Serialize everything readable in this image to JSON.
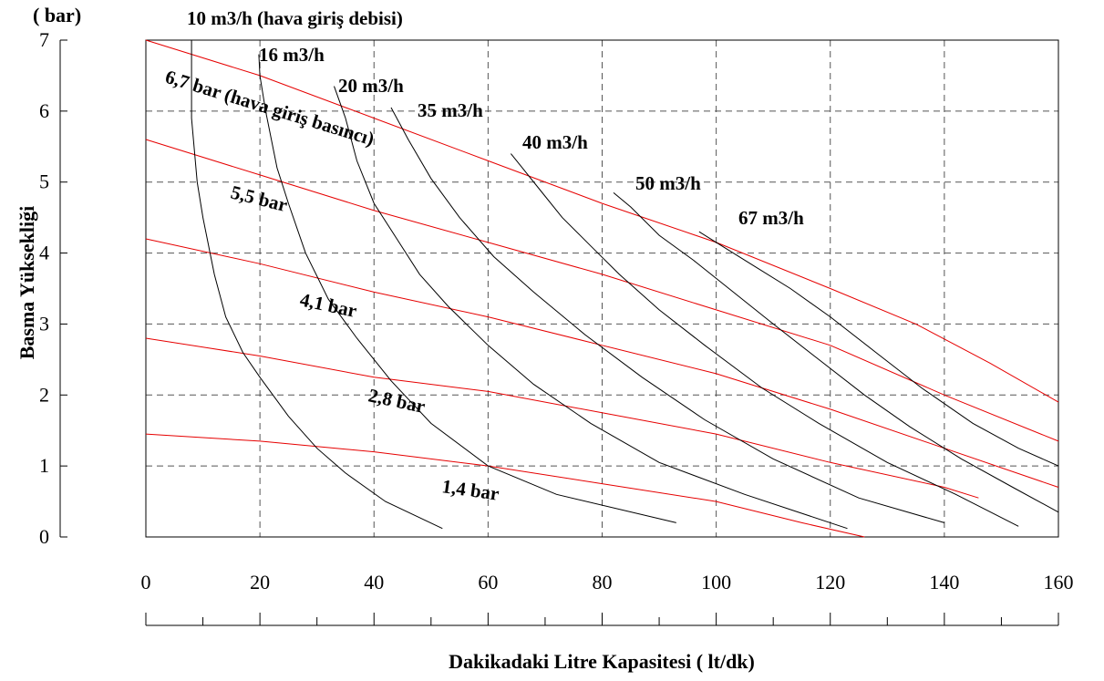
{
  "chart_data": {
    "type": "line",
    "title": "",
    "xlabel": "Dakikadaki Litre Kapasitesi ( lt/dk)",
    "ylabel": "Basma Yüksekliği",
    "y_unit": "( bar)",
    "xlim": [
      0,
      160
    ],
    "ylim": [
      0,
      7
    ],
    "x_ticks": [
      "0",
      "20",
      "40",
      "60",
      "80",
      "100",
      "120",
      "140",
      "160"
    ],
    "y_ticks": [
      "0",
      "1",
      "2",
      "3",
      "4",
      "5",
      "6",
      "7"
    ],
    "grid": true,
    "colors": {
      "air_curves": "#000000",
      "pressure_curves": "#e60000"
    },
    "air_flow_curves": [
      {
        "label": "10 m3/h (hava giriş debisi)",
        "points": [
          [
            8,
            7
          ],
          [
            8,
            5.9
          ],
          [
            9,
            5
          ],
          [
            10,
            4.5
          ],
          [
            12,
            3.7
          ],
          [
            14,
            3.1
          ],
          [
            17,
            2.6
          ],
          [
            20,
            2.25
          ],
          [
            25,
            1.7
          ],
          [
            30,
            1.25
          ],
          [
            35,
            0.9
          ],
          [
            42,
            0.5
          ],
          [
            52,
            0.12
          ]
        ]
      },
      {
        "label": "16 m3/h",
        "points": [
          [
            19.8,
            6.8
          ],
          [
            20,
            6.5
          ],
          [
            21,
            6
          ],
          [
            23,
            5.2
          ],
          [
            25,
            4.7
          ],
          [
            28,
            4
          ],
          [
            32,
            3.35
          ],
          [
            37,
            2.8
          ],
          [
            43,
            2.2
          ],
          [
            50,
            1.6
          ],
          [
            60,
            1
          ],
          [
            72,
            0.6
          ],
          [
            93,
            0.2
          ]
        ]
      },
      {
        "label": "20 m3/h",
        "points": [
          [
            33,
            6.35
          ],
          [
            35,
            5.9
          ],
          [
            37,
            5.3
          ],
          [
            40,
            4.7
          ],
          [
            44,
            4.2
          ],
          [
            48,
            3.7
          ],
          [
            53,
            3.25
          ],
          [
            60,
            2.7
          ],
          [
            68,
            2.15
          ],
          [
            78,
            1.6
          ],
          [
            90,
            1.05
          ],
          [
            105,
            0.6
          ],
          [
            123,
            0.12
          ]
        ]
      },
      {
        "label": "35 m3/h",
        "points": [
          [
            43,
            6.05
          ],
          [
            46,
            5.6
          ],
          [
            50,
            5.05
          ],
          [
            55,
            4.5
          ],
          [
            61,
            3.95
          ],
          [
            68,
            3.45
          ],
          [
            77,
            2.85
          ],
          [
            87,
            2.25
          ],
          [
            98,
            1.65
          ],
          [
            110,
            1.1
          ],
          [
            125,
            0.55
          ],
          [
            140,
            0.2
          ]
        ]
      },
      {
        "label": "40 m3/h",
        "points": [
          [
            64,
            5.4
          ],
          [
            66,
            5.2
          ],
          [
            69,
            4.9
          ],
          [
            73,
            4.5
          ],
          [
            78,
            4.1
          ],
          [
            83,
            3.7
          ],
          [
            90,
            3.2
          ],
          [
            98,
            2.7
          ],
          [
            108,
            2.1
          ],
          [
            118,
            1.6
          ],
          [
            130,
            1.05
          ],
          [
            142,
            0.6
          ],
          [
            153,
            0.15
          ]
        ]
      },
      {
        "label": "50 m3/h",
        "points": [
          [
            82,
            4.85
          ],
          [
            85,
            4.65
          ],
          [
            90,
            4.25
          ],
          [
            96,
            3.9
          ],
          [
            103,
            3.45
          ],
          [
            110,
            3
          ],
          [
            118,
            2.5
          ],
          [
            126,
            2
          ],
          [
            134,
            1.55
          ],
          [
            143,
            1.1
          ],
          [
            152,
            0.7
          ],
          [
            160,
            0.35
          ]
        ]
      },
      {
        "label": "67 m3/h",
        "points": [
          [
            97,
            4.3
          ],
          [
            101,
            4.1
          ],
          [
            106,
            3.85
          ],
          [
            113,
            3.5
          ],
          [
            120,
            3.1
          ],
          [
            128,
            2.6
          ],
          [
            136,
            2.1
          ],
          [
            145,
            1.6
          ],
          [
            153,
            1.25
          ],
          [
            160,
            1
          ]
        ]
      }
    ],
    "pressure_curves": [
      {
        "label": "6,7 bar (hava giriş basıncı)",
        "points": [
          [
            0,
            7
          ],
          [
            20,
            6.5
          ],
          [
            40,
            5.9
          ],
          [
            60,
            5.3
          ],
          [
            80,
            4.7
          ],
          [
            100,
            4.15
          ],
          [
            120,
            3.5
          ],
          [
            135,
            3
          ],
          [
            148,
            2.45
          ],
          [
            160,
            1.9
          ]
        ]
      },
      {
        "label": "5,5 bar",
        "points": [
          [
            0,
            5.6
          ],
          [
            20,
            5.1
          ],
          [
            40,
            4.6
          ],
          [
            60,
            4.15
          ],
          [
            80,
            3.7
          ],
          [
            100,
            3.2
          ],
          [
            120,
            2.7
          ],
          [
            140,
            2
          ],
          [
            160,
            1.35
          ]
        ]
      },
      {
        "label": "4,1 bar",
        "points": [
          [
            0,
            4.2
          ],
          [
            20,
            3.85
          ],
          [
            40,
            3.45
          ],
          [
            60,
            3.1
          ],
          [
            80,
            2.7
          ],
          [
            100,
            2.3
          ],
          [
            120,
            1.8
          ],
          [
            140,
            1.25
          ],
          [
            160,
            0.7
          ]
        ]
      },
      {
        "label": "2,8 bar",
        "points": [
          [
            0,
            2.8
          ],
          [
            20,
            2.55
          ],
          [
            40,
            2.25
          ],
          [
            60,
            2.05
          ],
          [
            80,
            1.75
          ],
          [
            100,
            1.45
          ],
          [
            120,
            1.05
          ],
          [
            140,
            0.7
          ],
          [
            146,
            0.55
          ]
        ]
      },
      {
        "label": "1,4 bar",
        "points": [
          [
            0,
            1.45
          ],
          [
            20,
            1.35
          ],
          [
            40,
            1.2
          ],
          [
            60,
            1
          ],
          [
            80,
            0.75
          ],
          [
            100,
            0.5
          ],
          [
            115,
            0.2
          ],
          [
            126,
            0
          ]
        ]
      }
    ]
  }
}
